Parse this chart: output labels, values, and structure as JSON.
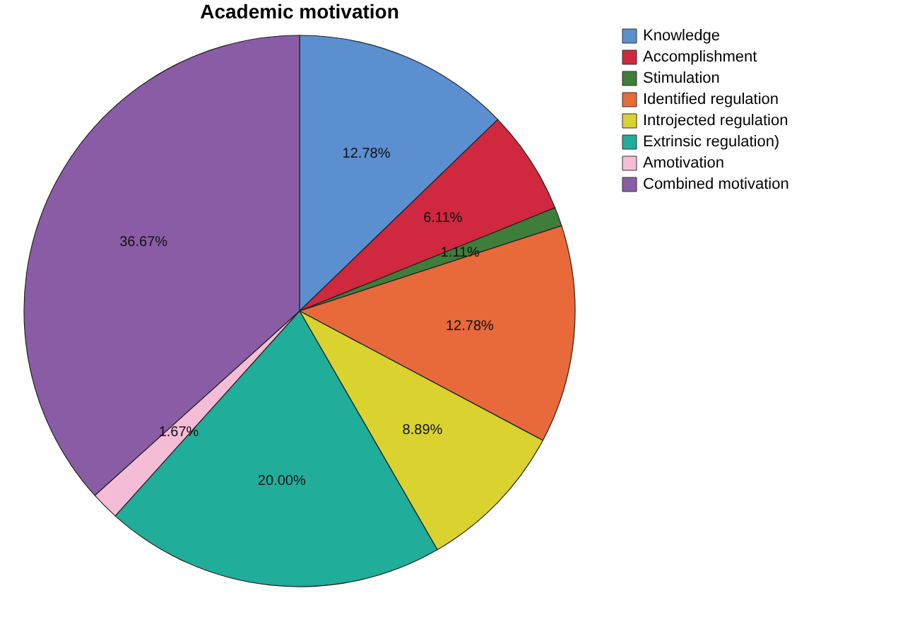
{
  "chart_data": {
    "type": "pie",
    "title": "Academic motivation",
    "categories": [
      "Knowledge",
      "Accomplishment",
      "Stimulation",
      "Identified regulation",
      "Introjected regulation",
      "Extrinsic regulation)",
      "Amotivation",
      "Combined motivation"
    ],
    "values": [
      12.78,
      6.11,
      1.11,
      12.78,
      8.89,
      20.0,
      1.67,
      36.67
    ],
    "colors": [
      "#5b8fd0",
      "#d0283f",
      "#3f7d3a",
      "#e8693a",
      "#d9d22f",
      "#20ad9a",
      "#f5bcd6",
      "#8a5ca6"
    ],
    "value_labels": [
      "12.78%",
      "6.11%",
      "1.11%",
      "12.78%",
      "8.89%",
      "20.00%",
      "1.67%",
      "36.67%"
    ],
    "legend": "top right"
  }
}
